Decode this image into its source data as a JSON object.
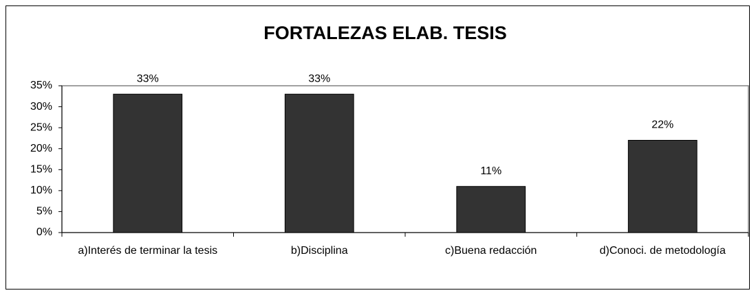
{
  "chart_data": {
    "type": "bar",
    "title": "FORTALEZAS ELAB. TESIS",
    "categories": [
      "a)Interés de terminar la tesis",
      "b)Disciplina",
      "c)Buena redacción",
      "d)Conoci. de metodología"
    ],
    "values": [
      33,
      33,
      11,
      22
    ],
    "value_labels": [
      "33%",
      "33%",
      "11%",
      "22%"
    ],
    "color": "#333333",
    "ylim": [
      0,
      35
    ],
    "yticks": [
      {
        "value": 0,
        "label": "0%"
      },
      {
        "value": 5,
        "label": "5%"
      },
      {
        "value": 10,
        "label": "10%"
      },
      {
        "value": 15,
        "label": "15%"
      },
      {
        "value": 20,
        "label": "20%"
      },
      {
        "value": 25,
        "label": "25%"
      },
      {
        "value": 30,
        "label": "30%"
      },
      {
        "value": 35,
        "label": "35%"
      }
    ],
    "grid": false
  }
}
